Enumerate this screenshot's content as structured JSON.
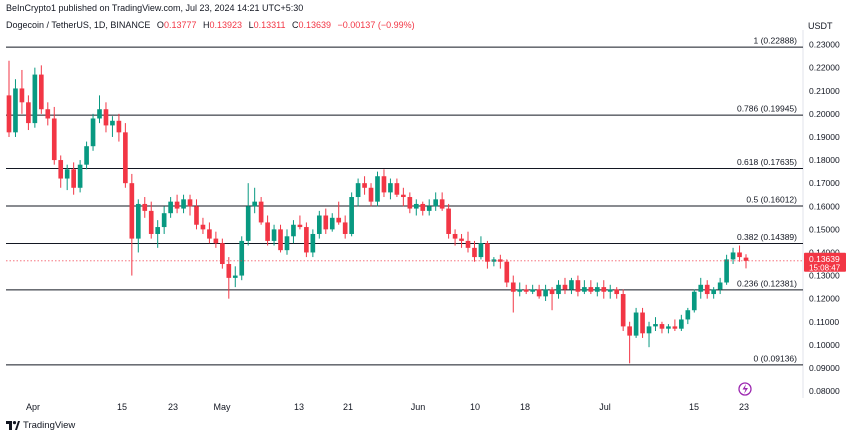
{
  "publish_line": "BeInCrypto1 published on TradingView.com, Jul 23, 2024 14:21 UTC+5:30",
  "header": {
    "symbol": "Dogecoin / TetherUS, 1D, BINANCE",
    "o_label": "O",
    "o_value": "0.13777",
    "h_label": "H",
    "h_value": "0.13923",
    "l_label": "L",
    "l_value": "0.13311",
    "c_label": "C",
    "c_value": "0.13639",
    "change": "−0.00137 (−0.99%)"
  },
  "currency": "USDT",
  "footer_logo_text": "TradingView",
  "colors": {
    "up": "#089981",
    "down": "#f23645",
    "fib": "#131722",
    "price_badge": "#f23645",
    "axis_text": "#131722",
    "event_icon": "#9c27b0"
  },
  "chart_data": {
    "type": "candlestick",
    "title": "Dogecoin / TetherUS, 1D, BINANCE",
    "ylim": [
      0.077,
      0.2363
    ],
    "y_ticks": [
      "0.23000",
      "0.22000",
      "0.21000",
      "0.20000",
      "0.19000",
      "0.18000",
      "0.17000",
      "0.16000",
      "0.15000",
      "0.14000",
      "0.13000",
      "0.12000",
      "0.11000",
      "0.10000",
      "0.09000",
      "0.08000"
    ],
    "x_ticks": [
      "Apr",
      "15",
      "23",
      "May",
      "13",
      "21",
      "Jun",
      "10",
      "18",
      "Jul",
      "15",
      "23"
    ],
    "current_price": "0.13639",
    "countdown": "15:08:47",
    "fib_levels": [
      {
        "label": "1 (0.22888)",
        "value": 0.22888
      },
      {
        "label": "0.786 (0.19945)",
        "value": 0.19945
      },
      {
        "label": "0.618 (0.17635)",
        "value": 0.17635
      },
      {
        "label": "0.5 (0.16012)",
        "value": 0.16012
      },
      {
        "label": "0.382 (0.14389)",
        "value": 0.14389
      },
      {
        "label": "0.236 (0.12381)",
        "value": 0.12381
      },
      {
        "label": "0 (0.09136)",
        "value": 0.09136
      }
    ],
    "candles": [
      [
        0.208,
        0.223,
        0.19,
        0.192
      ],
      [
        0.192,
        0.215,
        0.19,
        0.211
      ],
      [
        0.211,
        0.219,
        0.2,
        0.205
      ],
      [
        0.205,
        0.208,
        0.193,
        0.196
      ],
      [
        0.196,
        0.22,
        0.194,
        0.217
      ],
      [
        0.217,
        0.221,
        0.2,
        0.202
      ],
      [
        0.202,
        0.205,
        0.195,
        0.198
      ],
      [
        0.198,
        0.203,
        0.178,
        0.18
      ],
      [
        0.18,
        0.182,
        0.168,
        0.172
      ],
      [
        0.172,
        0.178,
        0.167,
        0.176
      ],
      [
        0.176,
        0.179,
        0.165,
        0.168
      ],
      [
        0.168,
        0.18,
        0.166,
        0.178
      ],
      [
        0.178,
        0.188,
        0.176,
        0.186
      ],
      [
        0.186,
        0.2,
        0.184,
        0.198
      ],
      [
        0.198,
        0.208,
        0.196,
        0.202
      ],
      [
        0.202,
        0.205,
        0.192,
        0.195
      ],
      [
        0.195,
        0.199,
        0.19,
        0.197
      ],
      [
        0.197,
        0.2,
        0.188,
        0.192
      ],
      [
        0.192,
        0.196,
        0.168,
        0.17
      ],
      [
        0.17,
        0.174,
        0.13,
        0.146
      ],
      [
        0.146,
        0.163,
        0.14,
        0.161
      ],
      [
        0.161,
        0.164,
        0.155,
        0.158
      ],
      [
        0.158,
        0.162,
        0.146,
        0.148
      ],
      [
        0.148,
        0.154,
        0.142,
        0.151
      ],
      [
        0.151,
        0.16,
        0.148,
        0.157
      ],
      [
        0.157,
        0.164,
        0.155,
        0.162
      ],
      [
        0.162,
        0.165,
        0.157,
        0.159
      ],
      [
        0.159,
        0.165,
        0.157,
        0.163
      ],
      [
        0.163,
        0.165,
        0.156,
        0.16
      ],
      [
        0.16,
        0.163,
        0.15,
        0.152
      ],
      [
        0.152,
        0.155,
        0.148,
        0.15
      ],
      [
        0.15,
        0.153,
        0.144,
        0.146
      ],
      [
        0.146,
        0.149,
        0.142,
        0.144
      ],
      [
        0.144,
        0.146,
        0.133,
        0.135
      ],
      [
        0.135,
        0.138,
        0.12,
        0.129
      ],
      [
        0.129,
        0.134,
        0.125,
        0.13
      ],
      [
        0.13,
        0.147,
        0.128,
        0.145
      ],
      [
        0.145,
        0.17,
        0.143,
        0.16
      ],
      [
        0.16,
        0.168,
        0.157,
        0.162
      ],
      [
        0.162,
        0.164,
        0.152,
        0.153
      ],
      [
        0.153,
        0.156,
        0.143,
        0.145
      ],
      [
        0.145,
        0.152,
        0.143,
        0.15
      ],
      [
        0.15,
        0.152,
        0.14,
        0.141
      ],
      [
        0.141,
        0.15,
        0.139,
        0.147
      ],
      [
        0.147,
        0.154,
        0.144,
        0.152
      ],
      [
        0.152,
        0.156,
        0.15,
        0.151
      ],
      [
        0.151,
        0.153,
        0.138,
        0.14
      ],
      [
        0.14,
        0.15,
        0.138,
        0.148
      ],
      [
        0.148,
        0.158,
        0.146,
        0.156
      ],
      [
        0.156,
        0.159,
        0.148,
        0.15
      ],
      [
        0.15,
        0.157,
        0.149,
        0.155
      ],
      [
        0.155,
        0.162,
        0.152,
        0.153
      ],
      [
        0.153,
        0.156,
        0.146,
        0.148
      ],
      [
        0.148,
        0.166,
        0.147,
        0.164
      ],
      [
        0.164,
        0.172,
        0.16,
        0.17
      ],
      [
        0.17,
        0.173,
        0.165,
        0.168
      ],
      [
        0.168,
        0.17,
        0.16,
        0.162
      ],
      [
        0.162,
        0.175,
        0.16,
        0.173
      ],
      [
        0.173,
        0.176,
        0.164,
        0.166
      ],
      [
        0.166,
        0.172,
        0.163,
        0.17
      ],
      [
        0.17,
        0.172,
        0.164,
        0.165
      ],
      [
        0.165,
        0.168,
        0.16,
        0.164
      ],
      [
        0.164,
        0.166,
        0.157,
        0.159
      ],
      [
        0.159,
        0.163,
        0.156,
        0.161
      ],
      [
        0.161,
        0.162,
        0.156,
        0.158
      ],
      [
        0.158,
        0.163,
        0.156,
        0.16
      ],
      [
        0.16,
        0.166,
        0.158,
        0.163
      ],
      [
        0.163,
        0.166,
        0.158,
        0.159
      ],
      [
        0.159,
        0.161,
        0.146,
        0.148
      ],
      [
        0.148,
        0.15,
        0.143,
        0.146
      ],
      [
        0.146,
        0.148,
        0.142,
        0.145
      ],
      [
        0.145,
        0.149,
        0.14,
        0.142
      ],
      [
        0.142,
        0.145,
        0.136,
        0.138
      ],
      [
        0.138,
        0.147,
        0.137,
        0.144
      ],
      [
        0.144,
        0.145,
        0.133,
        0.136
      ],
      [
        0.136,
        0.138,
        0.134,
        0.137
      ],
      [
        0.137,
        0.139,
        0.133,
        0.136
      ],
      [
        0.136,
        0.137,
        0.125,
        0.127
      ],
      [
        0.127,
        0.13,
        0.114,
        0.123
      ],
      [
        0.123,
        0.127,
        0.121,
        0.124
      ],
      [
        0.124,
        0.126,
        0.122,
        0.123
      ],
      [
        0.123,
        0.126,
        0.122,
        0.124
      ],
      [
        0.124,
        0.126,
        0.12,
        0.121
      ],
      [
        0.121,
        0.126,
        0.119,
        0.124
      ],
      [
        0.124,
        0.125,
        0.115,
        0.122
      ],
      [
        0.122,
        0.128,
        0.12,
        0.126
      ],
      [
        0.126,
        0.129,
        0.122,
        0.124
      ],
      [
        0.124,
        0.129,
        0.122,
        0.128
      ],
      [
        0.128,
        0.13,
        0.121,
        0.123
      ],
      [
        0.123,
        0.128,
        0.122,
        0.125
      ],
      [
        0.125,
        0.128,
        0.122,
        0.123
      ],
      [
        0.123,
        0.127,
        0.121,
        0.125
      ],
      [
        0.125,
        0.128,
        0.12,
        0.123
      ],
      [
        0.123,
        0.126,
        0.12,
        0.124
      ],
      [
        0.124,
        0.125,
        0.12,
        0.122
      ],
      [
        0.122,
        0.124,
        0.106,
        0.108
      ],
      [
        0.108,
        0.11,
        0.092,
        0.104
      ],
      [
        0.104,
        0.116,
        0.103,
        0.114
      ],
      [
        0.114,
        0.116,
        0.103,
        0.105
      ],
      [
        0.105,
        0.11,
        0.099,
        0.108
      ],
      [
        0.108,
        0.112,
        0.106,
        0.109
      ],
      [
        0.109,
        0.11,
        0.105,
        0.107
      ],
      [
        0.107,
        0.109,
        0.105,
        0.108
      ],
      [
        0.108,
        0.111,
        0.106,
        0.107
      ],
      [
        0.107,
        0.113,
        0.106,
        0.111
      ],
      [
        0.111,
        0.116,
        0.109,
        0.115
      ],
      [
        0.115,
        0.124,
        0.114,
        0.123
      ],
      [
        0.123,
        0.129,
        0.12,
        0.126
      ],
      [
        0.126,
        0.128,
        0.12,
        0.122
      ],
      [
        0.122,
        0.125,
        0.12,
        0.124
      ],
      [
        0.124,
        0.129,
        0.122,
        0.127
      ],
      [
        0.127,
        0.139,
        0.126,
        0.137
      ],
      [
        0.137,
        0.142,
        0.135,
        0.14
      ],
      [
        0.14,
        0.143,
        0.136,
        0.138
      ],
      [
        0.13777,
        0.13923,
        0.13311,
        0.13639
      ]
    ]
  }
}
